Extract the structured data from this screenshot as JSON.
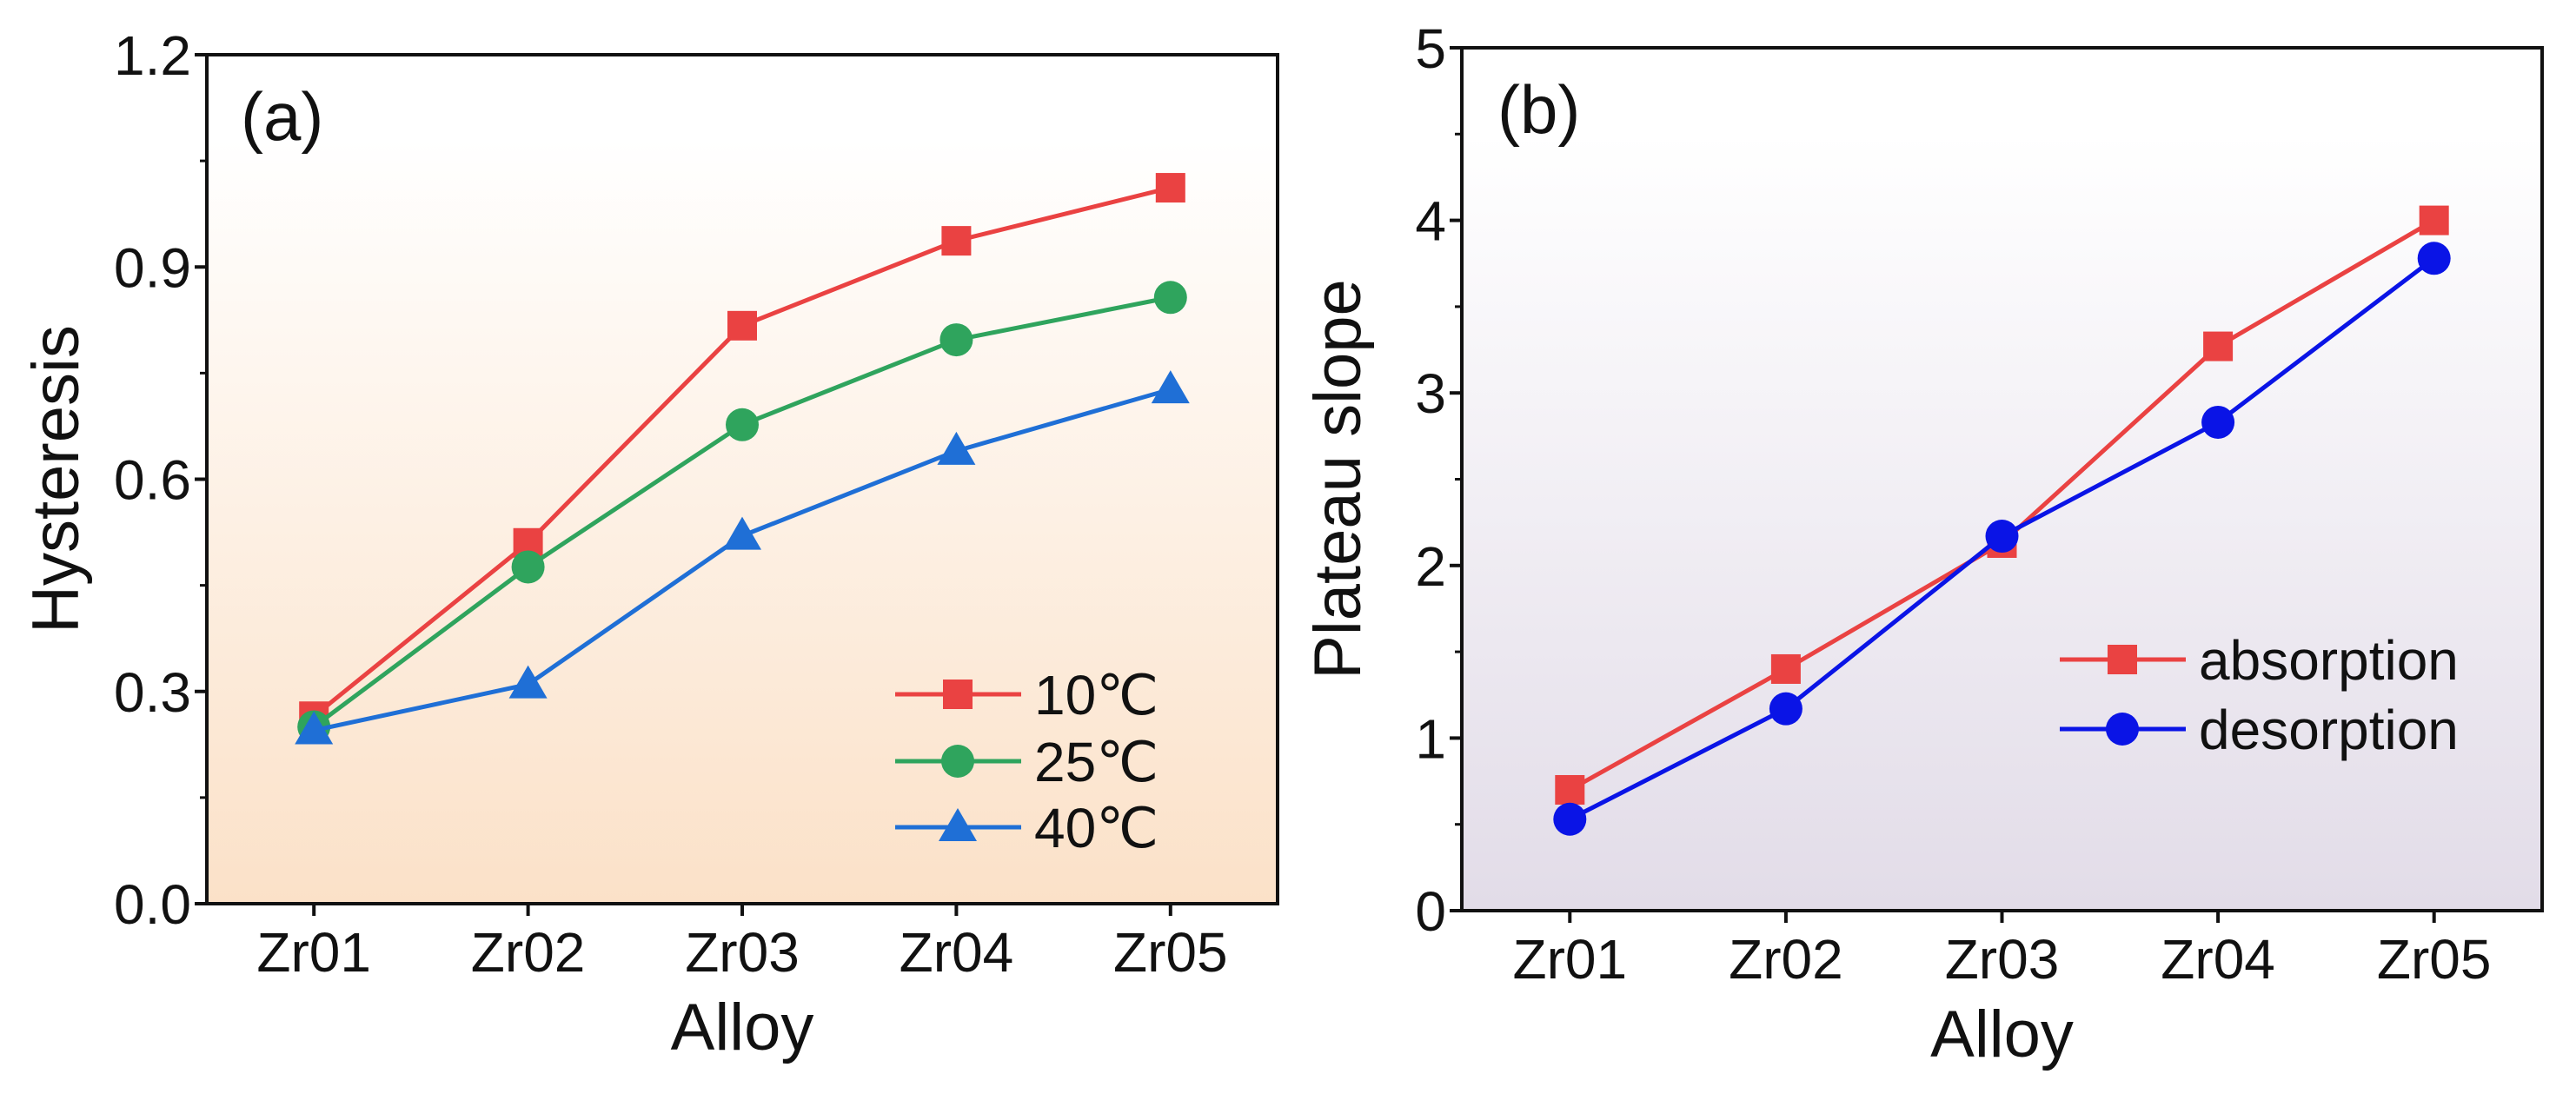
{
  "chart_data": [
    {
      "type": "line",
      "panel_label": "(a)",
      "xlabel": "Alloy",
      "ylabel": "Hysteresis",
      "categories": [
        "Zr01",
        "Zr02",
        "Zr03",
        "Zr04",
        "Zr05"
      ],
      "ylim": [
        0,
        1.2
      ],
      "yticks": [
        "0.0",
        "0.3",
        "0.6",
        "0.9",
        "1.2"
      ],
      "ytick_values": [
        0,
        0.3,
        0.6,
        0.9,
        1.2
      ],
      "legend_position": "bottom-right",
      "background": [
        "#ffffff",
        "#fbe1c8"
      ],
      "series": [
        {
          "name": "10℃",
          "marker": "square",
          "color": "#ea4242",
          "values": [
            0.265,
            0.51,
            0.817,
            0.937,
            1.012
          ]
        },
        {
          "name": "25℃",
          "marker": "circle",
          "color": "#2fa45d",
          "values": [
            0.25,
            0.476,
            0.677,
            0.797,
            0.857
          ]
        },
        {
          "name": "40℃",
          "marker": "triangle",
          "color": "#1f6fd6",
          "values": [
            0.245,
            0.31,
            0.52,
            0.64,
            0.727
          ]
        }
      ]
    },
    {
      "type": "line",
      "panel_label": "(b)",
      "xlabel": "Alloy",
      "ylabel": "Plateau slope",
      "categories": [
        "Zr01",
        "Zr02",
        "Zr03",
        "Zr04",
        "Zr05"
      ],
      "ylim": [
        0,
        5
      ],
      "yticks": [
        "0",
        "1",
        "2",
        "3",
        "4",
        "5"
      ],
      "ytick_values": [
        0,
        1,
        2,
        3,
        4,
        5
      ],
      "legend_position": "center-right",
      "background": [
        "#ffffff",
        "#e2dce8"
      ],
      "series": [
        {
          "name": "absorption",
          "marker": "square",
          "color": "#ea4242",
          "values": [
            0.7,
            1.4,
            2.13,
            3.27,
            4.0
          ]
        },
        {
          "name": "desorption",
          "marker": "circle",
          "color": "#0a14e6",
          "values": [
            0.53,
            1.17,
            2.17,
            2.83,
            3.78
          ]
        }
      ]
    }
  ]
}
